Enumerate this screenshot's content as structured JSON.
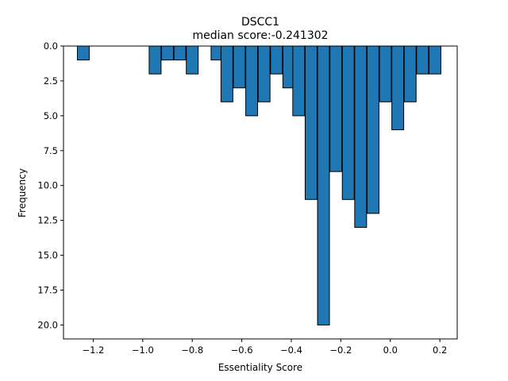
{
  "chart_data": {
    "type": "bar",
    "title": "DSCC1",
    "subtitle": "median score:-0.241302",
    "xlabel": "Essentiality Score",
    "ylabel": "Frequency",
    "xlim": [
      -1.32,
      0.27
    ],
    "ylim": [
      0,
      21
    ],
    "y_inverted": true,
    "grid": false,
    "bar_color": "#1f77b4",
    "edge_color": "#000000",
    "bin_width": 0.048,
    "bins": [
      {
        "x": -1.24,
        "count": 1
      },
      {
        "x": -0.95,
        "count": 2
      },
      {
        "x": -0.9,
        "count": 1
      },
      {
        "x": -0.85,
        "count": 1
      },
      {
        "x": -0.8,
        "count": 2
      },
      {
        "x": -0.7,
        "count": 1
      },
      {
        "x": -0.66,
        "count": 4
      },
      {
        "x": -0.61,
        "count": 3
      },
      {
        "x": -0.56,
        "count": 5
      },
      {
        "x": -0.51,
        "count": 4
      },
      {
        "x": -0.46,
        "count": 2
      },
      {
        "x": -0.41,
        "count": 3
      },
      {
        "x": -0.37,
        "count": 5
      },
      {
        "x": -0.32,
        "count": 11
      },
      {
        "x": -0.27,
        "count": 20
      },
      {
        "x": -0.22,
        "count": 9
      },
      {
        "x": -0.17,
        "count": 11
      },
      {
        "x": -0.12,
        "count": 13
      },
      {
        "x": -0.07,
        "count": 12
      },
      {
        "x": -0.02,
        "count": 4
      },
      {
        "x": 0.03,
        "count": 6
      },
      {
        "x": 0.08,
        "count": 4
      },
      {
        "x": 0.13,
        "count": 2
      },
      {
        "x": 0.18,
        "count": 2
      }
    ],
    "x_ticks": [
      {
        "value": -1.2,
        "label": "−1.2"
      },
      {
        "value": -1.0,
        "label": "−1.0"
      },
      {
        "value": -0.8,
        "label": "−0.8"
      },
      {
        "value": -0.6,
        "label": "−0.6"
      },
      {
        "value": -0.4,
        "label": "−0.4"
      },
      {
        "value": -0.2,
        "label": "−0.2"
      },
      {
        "value": 0.0,
        "label": "0.0"
      },
      {
        "value": 0.2,
        "label": "0.2"
      }
    ],
    "y_ticks": [
      {
        "value": 0,
        "label": "0.0"
      },
      {
        "value": 2.5,
        "label": "2.5"
      },
      {
        "value": 5,
        "label": "5.0"
      },
      {
        "value": 7.5,
        "label": "7.5"
      },
      {
        "value": 10,
        "label": "10.0"
      },
      {
        "value": 12.5,
        "label": "12.5"
      },
      {
        "value": 15,
        "label": "15.0"
      },
      {
        "value": 17.5,
        "label": "17.5"
      },
      {
        "value": 20,
        "label": "20.0"
      }
    ]
  }
}
